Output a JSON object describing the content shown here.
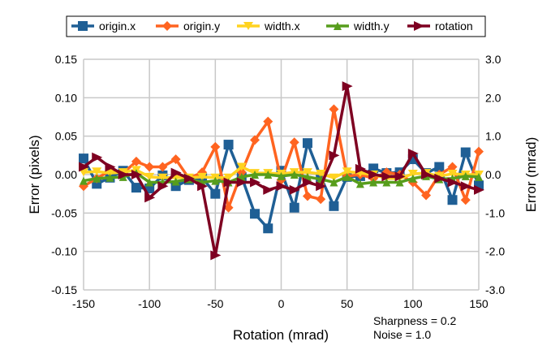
{
  "chart_data": {
    "type": "line",
    "xlabel": "Rotation (mrad)",
    "ylabel": "Error (pixels)",
    "y2label": "Error (mrad)",
    "xlim": [
      -150,
      150
    ],
    "ylim": [
      -0.15,
      0.15
    ],
    "y2lim": [
      -3.0,
      3.0
    ],
    "xticks": [
      "-150",
      "-100",
      "-50",
      "0",
      "50",
      "100",
      "150"
    ],
    "yticks": [
      "0.15",
      "0.10",
      "0.05",
      "0.00",
      "-0.05",
      "-0.10",
      "-0.15"
    ],
    "y2ticks": [
      "3.0",
      "2.0",
      "1.0",
      "0.0",
      "-1.0",
      "-2.0",
      "-3.0"
    ],
    "grid": true,
    "legend_position": "top",
    "annotations": [
      "Sharpness = 0.2",
      "Noise = 1.0"
    ],
    "x": [
      -150,
      -140,
      -130,
      -120,
      -110,
      -100,
      -90,
      -80,
      -70,
      -60,
      -50,
      -40,
      -30,
      -20,
      -10,
      0,
      10,
      20,
      30,
      40,
      50,
      60,
      70,
      80,
      90,
      100,
      110,
      120,
      130,
      140,
      150
    ],
    "series": [
      {
        "name": "origin.x",
        "axis": "left",
        "color": "#1f5f95",
        "marker": "square",
        "values": [
          0.021,
          -0.012,
          -0.004,
          0.005,
          -0.017,
          -0.018,
          -0.001,
          -0.015,
          -0.007,
          -0.004,
          -0.025,
          0.039,
          -0.003,
          -0.051,
          -0.07,
          0.005,
          -0.043,
          0.041,
          -0.003,
          -0.041,
          -0.003,
          -0.002,
          0.008,
          0.002,
          0.003,
          0.02,
          0.002,
          0.01,
          -0.033,
          0.029,
          -0.014
        ]
      },
      {
        "name": "origin.y",
        "axis": "left",
        "color": "#ff6420",
        "marker": "diamond",
        "values": [
          -0.015,
          -0.005,
          0.005,
          0.002,
          0.017,
          0.01,
          0.01,
          0.02,
          -0.005,
          0.003,
          0.036,
          -0.043,
          0.003,
          0.045,
          0.069,
          -0.007,
          0.042,
          -0.028,
          -0.032,
          0.085,
          -0.002,
          0.0,
          -0.005,
          0.003,
          0.0,
          -0.01,
          -0.027,
          0.0,
          0.01,
          -0.033,
          0.03
        ]
      },
      {
        "name": "width.x",
        "axis": "left",
        "color": "#ffd320",
        "marker": "triangle-down",
        "values": [
          0.003,
          0.004,
          0.002,
          0.003,
          0.006,
          -0.003,
          -0.004,
          -0.004,
          -0.004,
          -0.003,
          -0.004,
          -0.004,
          0.01,
          0.002,
          0.002,
          0.001,
          0.003,
          0.003,
          0.001,
          -0.004,
          0.004,
          0.002,
          0.0,
          -0.005,
          -0.005,
          0.001,
          0.002,
          -0.002,
          0.001,
          0.0,
          0.0
        ]
      },
      {
        "name": "width.y",
        "axis": "left",
        "color": "#579d1c",
        "marker": "triangle-up",
        "values": [
          -0.008,
          -0.005,
          -0.004,
          -0.003,
          0.002,
          -0.01,
          -0.01,
          -0.009,
          -0.006,
          -0.01,
          -0.008,
          -0.01,
          -0.003,
          0.0,
          0.0,
          -0.002,
          0.0,
          -0.003,
          -0.006,
          -0.01,
          -0.003,
          -0.012,
          -0.01,
          -0.01,
          -0.01,
          -0.005,
          -0.002,
          -0.006,
          -0.005,
          -0.002,
          -0.003
        ]
      },
      {
        "name": "rotation",
        "axis": "right",
        "color": "#7e0021",
        "marker": "triangle-right",
        "values": [
          0.2,
          0.45,
          0.2,
          0.0,
          0.0,
          -0.6,
          -0.3,
          0.05,
          -0.1,
          -0.3,
          -2.1,
          -0.2,
          -0.2,
          -0.2,
          -0.4,
          -0.3,
          -0.4,
          -0.2,
          -0.3,
          0.5,
          2.3,
          0.15,
          0.0,
          -0.05,
          -0.05,
          0.55,
          0.0,
          -0.1,
          -0.2,
          -0.3,
          -0.4
        ]
      }
    ]
  }
}
